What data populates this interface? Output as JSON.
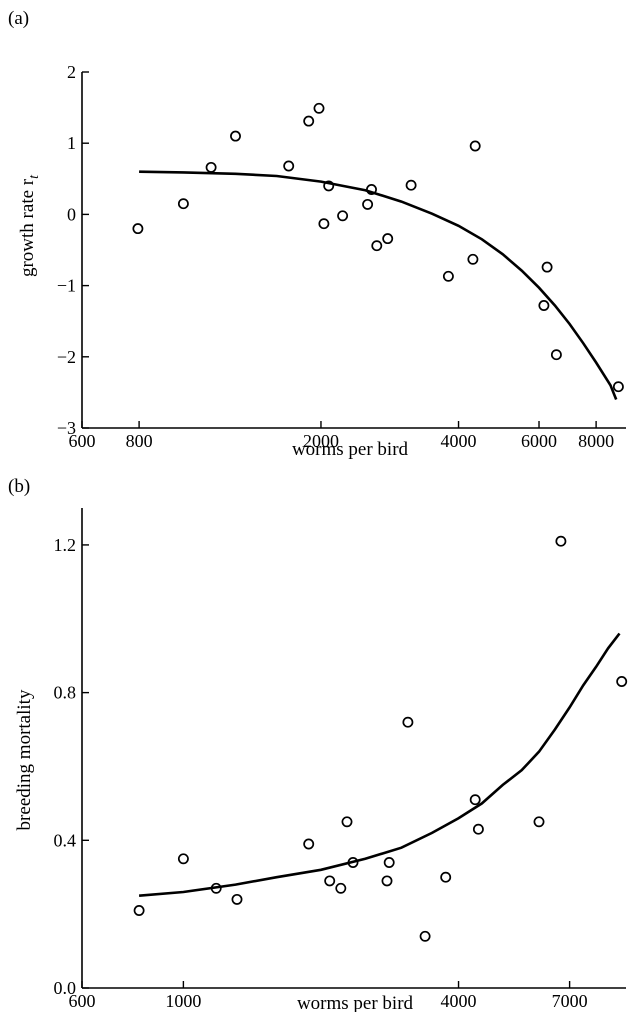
{
  "chart_data": [
    {
      "type": "scatter",
      "panel_label": "(a)",
      "xlabel": "worms per bird",
      "ylabel": "growth rate r",
      "ylabel_subscript": "t",
      "x_scale": "log",
      "xlim": [
        600,
        9300
      ],
      "ylim": [
        -3,
        2
      ],
      "x_ticks": [
        600,
        800,
        2000,
        4000,
        6000,
        8000
      ],
      "x_tick_labels": [
        "600",
        "800",
        "2000",
        "4000",
        "6000",
        "8000"
      ],
      "y_ticks": [
        -3,
        -2,
        -1,
        0,
        1,
        2
      ],
      "y_tick_labels": [
        "−3",
        "−2",
        "−1",
        "0",
        "1",
        "2"
      ],
      "series": [
        {
          "marker": "open-circle",
          "points": [
            [
              795,
              -0.2
            ],
            [
              1000,
              0.15
            ],
            [
              1150,
              0.66
            ],
            [
              1300,
              1.1
            ],
            [
              1700,
              0.68
            ],
            [
              1880,
              1.31
            ],
            [
              1980,
              1.49
            ],
            [
              2030,
              -0.13
            ],
            [
              2080,
              0.4
            ],
            [
              2230,
              -0.02
            ],
            [
              2530,
              0.14
            ],
            [
              2580,
              0.35
            ],
            [
              2650,
              -0.44
            ],
            [
              2800,
              -0.34
            ],
            [
              3150,
              0.41
            ],
            [
              3800,
              -0.87
            ],
            [
              4300,
              -0.63
            ],
            [
              4350,
              0.96
            ],
            [
              6150,
              -1.28
            ],
            [
              6250,
              -0.74
            ],
            [
              6550,
              -1.97
            ],
            [
              8950,
              -2.42
            ]
          ]
        },
        {
          "type": "line",
          "points": [
            [
              800,
              0.6
            ],
            [
              1000,
              0.59
            ],
            [
              1300,
              0.57
            ],
            [
              1600,
              0.54
            ],
            [
              2000,
              0.46
            ],
            [
              2500,
              0.34
            ],
            [
              3000,
              0.18
            ],
            [
              3500,
              0.01
            ],
            [
              4000,
              -0.16
            ],
            [
              4500,
              -0.35
            ],
            [
              5000,
              -0.56
            ],
            [
              5500,
              -0.79
            ],
            [
              6000,
              -1.03
            ],
            [
              6500,
              -1.28
            ],
            [
              7000,
              -1.54
            ],
            [
              7500,
              -1.81
            ],
            [
              8000,
              -2.08
            ],
            [
              8600,
              -2.4
            ],
            [
              8850,
              -2.6
            ]
          ]
        }
      ]
    },
    {
      "type": "scatter",
      "panel_label": "(b)",
      "xlabel": "worms per bird",
      "ylabel": "breeding mortality",
      "x_scale": "log",
      "xlim": [
        600,
        9300
      ],
      "ylim": [
        0.0,
        1.3
      ],
      "x_ticks": [
        600,
        1000,
        4000,
        7000
      ],
      "x_tick_labels": [
        "600",
        "1000",
        "4000",
        "7000"
      ],
      "y_ticks": [
        0.0,
        0.4,
        0.8,
        1.2
      ],
      "y_tick_labels": [
        "0.0",
        "0.4",
        "0.8",
        "1.2"
      ],
      "series": [
        {
          "marker": "open-circle",
          "points": [
            [
              800,
              0.21
            ],
            [
              1000,
              0.35
            ],
            [
              1180,
              0.27
            ],
            [
              1310,
              0.24
            ],
            [
              1880,
              0.39
            ],
            [
              2090,
              0.29
            ],
            [
              2210,
              0.27
            ],
            [
              2280,
              0.45
            ],
            [
              2350,
              0.34
            ],
            [
              2790,
              0.29
            ],
            [
              2820,
              0.34
            ],
            [
              3100,
              0.72
            ],
            [
              3380,
              0.14
            ],
            [
              3750,
              0.3
            ],
            [
              4350,
              0.51
            ],
            [
              4420,
              0.43
            ],
            [
              6000,
              0.45
            ],
            [
              6700,
              1.21
            ],
            [
              9100,
              0.83
            ]
          ]
        },
        {
          "type": "line",
          "points": [
            [
              800,
              0.25
            ],
            [
              1000,
              0.26
            ],
            [
              1300,
              0.28
            ],
            [
              1600,
              0.3
            ],
            [
              2000,
              0.32
            ],
            [
              2500,
              0.35
            ],
            [
              3000,
              0.38
            ],
            [
              3500,
              0.42
            ],
            [
              4000,
              0.46
            ],
            [
              4500,
              0.5
            ],
            [
              5000,
              0.55
            ],
            [
              5500,
              0.59
            ],
            [
              6000,
              0.64
            ],
            [
              6500,
              0.7
            ],
            [
              7000,
              0.76
            ],
            [
              7500,
              0.82
            ],
            [
              8000,
              0.87
            ],
            [
              8500,
              0.92
            ],
            [
              9000,
              0.96
            ]
          ]
        }
      ]
    }
  ]
}
